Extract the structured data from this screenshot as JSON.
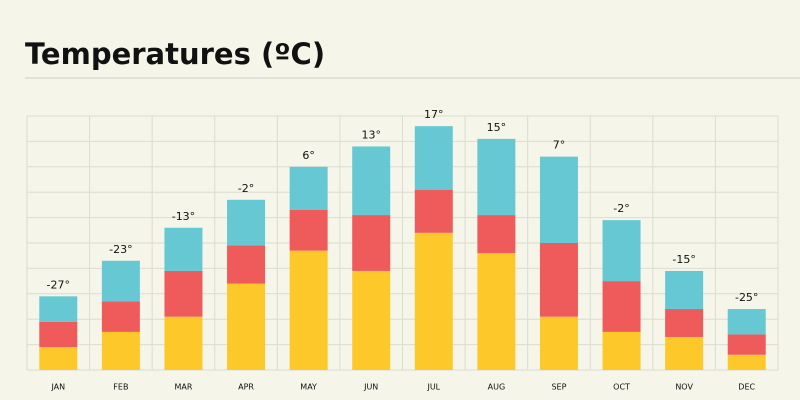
{
  "chart_data": {
    "type": "stacked-bar",
    "title": "Temperatures (ºC)",
    "categories": [
      "JAN",
      "FEB",
      "MAR",
      "APR",
      "MAY",
      "JUN",
      "JUL",
      "AUG",
      "SEP",
      "OCT",
      "NOV",
      "DEC"
    ],
    "bar_labels": [
      "-27°",
      "-23°",
      "-13°",
      "-2°",
      "6°",
      "13°",
      "17°",
      "15°",
      "7°",
      "-2°",
      "-15°",
      "-25°"
    ],
    "series": [
      {
        "color": "#fdc829",
        "values": [
          0.9,
          1.5,
          2.1,
          3.4,
          4.7,
          3.9,
          5.4,
          4.6,
          2.1,
          1.5,
          1.3,
          0.6
        ]
      },
      {
        "color": "#ef5b5b",
        "values": [
          1.0,
          1.2,
          1.8,
          1.5,
          1.6,
          2.2,
          1.7,
          1.5,
          2.9,
          2.0,
          1.1,
          0.8
        ]
      },
      {
        "color": "#65c8d3",
        "values": [
          1.0,
          1.6,
          1.7,
          1.8,
          1.7,
          2.7,
          2.5,
          3.0,
          3.4,
          2.4,
          1.5,
          1.0
        ]
      }
    ],
    "ylim": [
      0,
      10
    ],
    "yticks": [
      0,
      1,
      2,
      3,
      4,
      5,
      6,
      7,
      8,
      9,
      10
    ],
    "grid": true
  }
}
